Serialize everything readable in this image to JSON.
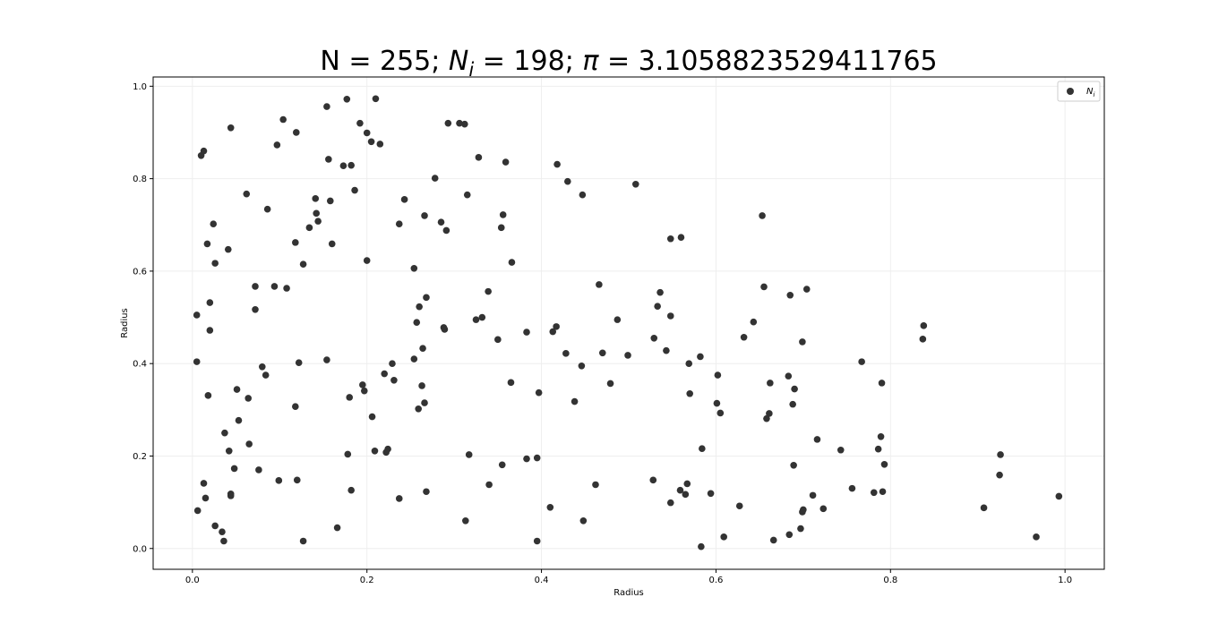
{
  "chart_data": {
    "type": "scatter",
    "title": {
      "prefix": "N = 255; ",
      "ni_symbol": "N",
      "ni_sub": "i",
      "ni_value": " = 198; ",
      "pi_symbol": "π",
      "pi_value": " = 3.1058823529411765"
    },
    "xlabel": "Radius",
    "ylabel": "Radius",
    "xlim": [
      -0.045,
      1.045
    ],
    "ylim": [
      -0.045,
      1.02
    ],
    "xticks": [
      "0.0",
      "0.2",
      "0.4",
      "0.6",
      "0.8",
      "1.0"
    ],
    "yticks": [
      "0.0",
      "0.2",
      "0.4",
      "0.6",
      "0.8",
      "1.0"
    ],
    "grid": true,
    "legend": {
      "placement": "top-right",
      "label_symbol": "N",
      "label_sub": "i"
    },
    "marker_color": "#333333",
    "series": [
      {
        "name": "N_i",
        "points": [
          [
            0.01,
            0.85
          ],
          [
            0.013,
            0.86
          ],
          [
            0.005,
            0.505
          ],
          [
            0.005,
            0.404
          ],
          [
            0.018,
            0.331
          ],
          [
            0.02,
            0.472
          ],
          [
            0.02,
            0.532
          ],
          [
            0.017,
            0.659
          ],
          [
            0.024,
            0.702
          ],
          [
            0.026,
            0.617
          ],
          [
            0.006,
            0.082
          ],
          [
            0.013,
            0.141
          ],
          [
            0.015,
            0.109
          ],
          [
            0.026,
            0.049
          ],
          [
            0.034,
            0.036
          ],
          [
            0.036,
            0.016
          ],
          [
            0.037,
            0.25
          ],
          [
            0.042,
            0.211
          ],
          [
            0.044,
            0.118
          ],
          [
            0.044,
            0.114
          ],
          [
            0.048,
            0.173
          ],
          [
            0.051,
            0.344
          ],
          [
            0.053,
            0.277
          ],
          [
            0.041,
            0.647
          ],
          [
            0.044,
            0.91
          ],
          [
            0.062,
            0.767
          ],
          [
            0.065,
            0.226
          ],
          [
            0.064,
            0.325
          ],
          [
            0.072,
            0.517
          ],
          [
            0.072,
            0.567
          ],
          [
            0.076,
            0.17
          ],
          [
            0.08,
            0.393
          ],
          [
            0.084,
            0.375
          ],
          [
            0.086,
            0.734
          ],
          [
            0.097,
            0.873
          ],
          [
            0.094,
            0.567
          ],
          [
            0.099,
            0.147
          ],
          [
            0.104,
            0.928
          ],
          [
            0.108,
            0.563
          ],
          [
            0.119,
            0.9
          ],
          [
            0.118,
            0.662
          ],
          [
            0.118,
            0.307
          ],
          [
            0.12,
            0.148
          ],
          [
            0.122,
            0.402
          ],
          [
            0.127,
            0.615
          ],
          [
            0.127,
            0.016
          ],
          [
            0.134,
            0.694
          ],
          [
            0.141,
            0.757
          ],
          [
            0.142,
            0.725
          ],
          [
            0.144,
            0.708
          ],
          [
            0.154,
            0.956
          ],
          [
            0.154,
            0.408
          ],
          [
            0.156,
            0.842
          ],
          [
            0.158,
            0.752
          ],
          [
            0.16,
            0.659
          ],
          [
            0.166,
            0.045
          ],
          [
            0.173,
            0.828
          ],
          [
            0.177,
            0.972
          ],
          [
            0.178,
            0.204
          ],
          [
            0.18,
            0.327
          ],
          [
            0.182,
            0.829
          ],
          [
            0.182,
            0.126
          ],
          [
            0.186,
            0.775
          ],
          [
            0.192,
            0.92
          ],
          [
            0.195,
            0.354
          ],
          [
            0.197,
            0.341
          ],
          [
            0.2,
            0.899
          ],
          [
            0.2,
            0.623
          ],
          [
            0.205,
            0.88
          ],
          [
            0.206,
            0.285
          ],
          [
            0.209,
            0.211
          ],
          [
            0.21,
            0.973
          ],
          [
            0.215,
            0.875
          ],
          [
            0.22,
            0.378
          ],
          [
            0.222,
            0.208
          ],
          [
            0.224,
            0.215
          ],
          [
            0.229,
            0.4
          ],
          [
            0.231,
            0.364
          ],
          [
            0.237,
            0.702
          ],
          [
            0.237,
            0.108
          ],
          [
            0.243,
            0.755
          ],
          [
            0.254,
            0.606
          ],
          [
            0.254,
            0.41
          ],
          [
            0.257,
            0.489
          ],
          [
            0.259,
            0.302
          ],
          [
            0.26,
            0.523
          ],
          [
            0.263,
            0.352
          ],
          [
            0.264,
            0.433
          ],
          [
            0.266,
            0.72
          ],
          [
            0.266,
            0.315
          ],
          [
            0.268,
            0.543
          ],
          [
            0.268,
            0.123
          ],
          [
            0.278,
            0.801
          ],
          [
            0.285,
            0.706
          ],
          [
            0.288,
            0.478
          ],
          [
            0.289,
            0.474
          ],
          [
            0.291,
            0.688
          ],
          [
            0.293,
            0.92
          ],
          [
            0.306,
            0.92
          ],
          [
            0.312,
            0.918
          ],
          [
            0.313,
            0.06
          ],
          [
            0.315,
            0.765
          ],
          [
            0.317,
            0.203
          ],
          [
            0.325,
            0.495
          ],
          [
            0.328,
            0.846
          ],
          [
            0.332,
            0.5
          ],
          [
            0.339,
            0.556
          ],
          [
            0.34,
            0.138
          ],
          [
            0.35,
            0.452
          ],
          [
            0.354,
            0.694
          ],
          [
            0.355,
            0.181
          ],
          [
            0.356,
            0.722
          ],
          [
            0.359,
            0.836
          ],
          [
            0.365,
            0.359
          ],
          [
            0.366,
            0.619
          ],
          [
            0.383,
            0.468
          ],
          [
            0.383,
            0.194
          ],
          [
            0.395,
            0.196
          ],
          [
            0.395,
            0.016
          ],
          [
            0.397,
            0.337
          ],
          [
            0.41,
            0.089
          ],
          [
            0.413,
            0.469
          ],
          [
            0.417,
            0.48
          ],
          [
            0.418,
            0.831
          ],
          [
            0.428,
            0.422
          ],
          [
            0.43,
            0.794
          ],
          [
            0.438,
            0.318
          ],
          [
            0.446,
            0.395
          ],
          [
            0.447,
            0.765
          ],
          [
            0.448,
            0.06
          ],
          [
            0.462,
            0.138
          ],
          [
            0.466,
            0.571
          ],
          [
            0.47,
            0.423
          ],
          [
            0.479,
            0.357
          ],
          [
            0.487,
            0.495
          ],
          [
            0.499,
            0.418
          ],
          [
            0.508,
            0.788
          ],
          [
            0.529,
            0.455
          ],
          [
            0.533,
            0.524
          ],
          [
            0.536,
            0.554
          ],
          [
            0.528,
            0.148
          ],
          [
            0.543,
            0.428
          ],
          [
            0.548,
            0.67
          ],
          [
            0.548,
            0.503
          ],
          [
            0.548,
            0.099
          ],
          [
            0.56,
            0.673
          ],
          [
            0.559,
            0.126
          ],
          [
            0.565,
            0.117
          ],
          [
            0.567,
            0.14
          ],
          [
            0.569,
            0.4
          ],
          [
            0.57,
            0.335
          ],
          [
            0.582,
            0.415
          ],
          [
            0.584,
            0.216
          ],
          [
            0.583,
            0.004
          ],
          [
            0.594,
            0.119
          ],
          [
            0.601,
            0.314
          ],
          [
            0.602,
            0.375
          ],
          [
            0.605,
            0.293
          ],
          [
            0.609,
            0.025
          ],
          [
            0.627,
            0.092
          ],
          [
            0.632,
            0.457
          ],
          [
            0.643,
            0.49
          ],
          [
            0.653,
            0.72
          ],
          [
            0.655,
            0.566
          ],
          [
            0.658,
            0.281
          ],
          [
            0.661,
            0.292
          ],
          [
            0.662,
            0.358
          ],
          [
            0.666,
            0.018
          ],
          [
            0.683,
            0.373
          ],
          [
            0.685,
            0.548
          ],
          [
            0.684,
            0.03
          ],
          [
            0.688,
            0.312
          ],
          [
            0.69,
            0.345
          ],
          [
            0.689,
            0.18
          ],
          [
            0.697,
            0.043
          ],
          [
            0.699,
            0.079
          ],
          [
            0.7,
            0.084
          ],
          [
            0.699,
            0.447
          ],
          [
            0.704,
            0.561
          ],
          [
            0.711,
            0.115
          ],
          [
            0.716,
            0.236
          ],
          [
            0.723,
            0.086
          ],
          [
            0.743,
            0.213
          ],
          [
            0.756,
            0.13
          ],
          [
            0.767,
            0.404
          ],
          [
            0.781,
            0.121
          ],
          [
            0.786,
            0.215
          ],
          [
            0.789,
            0.242
          ],
          [
            0.79,
            0.358
          ],
          [
            0.791,
            0.123
          ],
          [
            0.793,
            0.182
          ],
          [
            0.837,
            0.453
          ],
          [
            0.838,
            0.482
          ],
          [
            0.907,
            0.088
          ],
          [
            0.925,
            0.159
          ],
          [
            0.926,
            0.203
          ],
          [
            0.967,
            0.025
          ],
          [
            0.993,
            0.113
          ]
        ]
      }
    ]
  }
}
